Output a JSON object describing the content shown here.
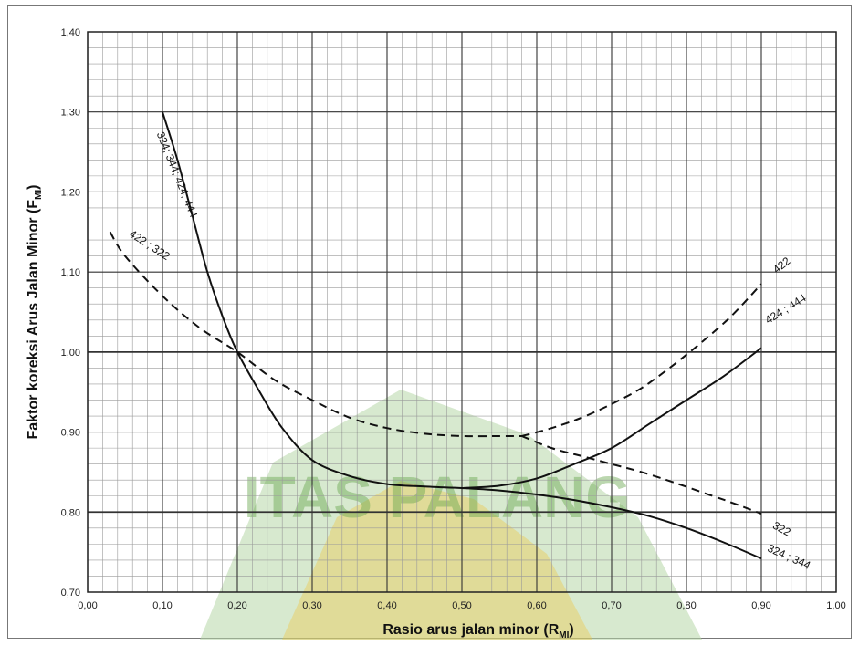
{
  "chart_data": {
    "type": "line",
    "xlabel": "Rasio arus jalan minor (R",
    "xlabel_sub": "MI",
    "xlabel_end": ")",
    "ylabel": "Faktor koreksi Arus Jalan Minor (F",
    "ylabel_sub": "MI",
    "ylabel_end": ")",
    "xlim": [
      0,
      1
    ],
    "ylim": [
      0.7,
      1.4
    ],
    "x_ticks": [
      "0,00",
      "0,10",
      "0,20",
      "0,30",
      "0,40",
      "0,50",
      "0,60",
      "0,70",
      "0,80",
      "0,90",
      "1,00"
    ],
    "y_ticks": [
      "0,70",
      "0,80",
      "0,90",
      "1,00",
      "1,10",
      "1,20",
      "1,30",
      "1,40"
    ],
    "grid": true,
    "series": [
      {
        "name": "324; 344; 424; 444",
        "style": "solid",
        "x": [
          0.1,
          0.12,
          0.14,
          0.16,
          0.18,
          0.2,
          0.23,
          0.26,
          0.3,
          0.35,
          0.4,
          0.45,
          0.5
        ],
        "y": [
          1.3,
          1.24,
          1.17,
          1.1,
          1.045,
          1.0,
          0.95,
          0.905,
          0.865,
          0.845,
          0.835,
          0.832,
          0.83
        ]
      },
      {
        "name": "424 ; 444",
        "style": "solid",
        "x": [
          0.5,
          0.55,
          0.6,
          0.65,
          0.7,
          0.75,
          0.8,
          0.85,
          0.9
        ],
        "y": [
          0.83,
          0.833,
          0.842,
          0.86,
          0.88,
          0.91,
          0.94,
          0.97,
          1.005
        ]
      },
      {
        "name": "324 ; 344",
        "style": "solid",
        "x": [
          0.5,
          0.55,
          0.6,
          0.65,
          0.7,
          0.75,
          0.8,
          0.85,
          0.9
        ],
        "y": [
          0.83,
          0.827,
          0.822,
          0.815,
          0.806,
          0.795,
          0.78,
          0.762,
          0.742
        ]
      },
      {
        "name": "422 ; 322",
        "style": "dashed",
        "x": [
          0.03,
          0.05,
          0.1,
          0.15,
          0.2,
          0.25,
          0.3,
          0.35,
          0.4,
          0.45,
          0.5,
          0.55,
          0.58
        ],
        "y": [
          1.15,
          1.12,
          1.07,
          1.03,
          1.0,
          0.965,
          0.94,
          0.918,
          0.905,
          0.898,
          0.895,
          0.895,
          0.895
        ]
      },
      {
        "name": "422",
        "style": "dashed",
        "x": [
          0.58,
          0.62,
          0.66,
          0.7,
          0.74,
          0.78,
          0.82,
          0.86,
          0.9
        ],
        "y": [
          0.895,
          0.905,
          0.918,
          0.935,
          0.955,
          0.982,
          1.012,
          1.045,
          1.085
        ]
      },
      {
        "name": "322",
        "style": "dashed",
        "x": [
          0.58,
          0.62,
          0.66,
          0.7,
          0.74,
          0.78,
          0.82,
          0.86,
          0.9
        ],
        "y": [
          0.895,
          0.88,
          0.87,
          0.86,
          0.85,
          0.838,
          0.825,
          0.812,
          0.798
        ]
      }
    ],
    "labels": [
      {
        "text": "324; 344; 424; 444",
        "x": 0.115,
        "y": 1.22
      },
      {
        "text": "422 ; 322",
        "x": 0.08,
        "y": 1.13
      },
      {
        "text": "422",
        "x": 0.93,
        "y": 1.105
      },
      {
        "text": "424 ; 444",
        "x": 0.935,
        "y": 1.05
      },
      {
        "text": "322",
        "x": 0.925,
        "y": 0.775
      },
      {
        "text": "324 ; 344",
        "x": 0.935,
        "y": 0.74
      }
    ],
    "watermark": {
      "text": "ITAS PALANG"
    }
  }
}
